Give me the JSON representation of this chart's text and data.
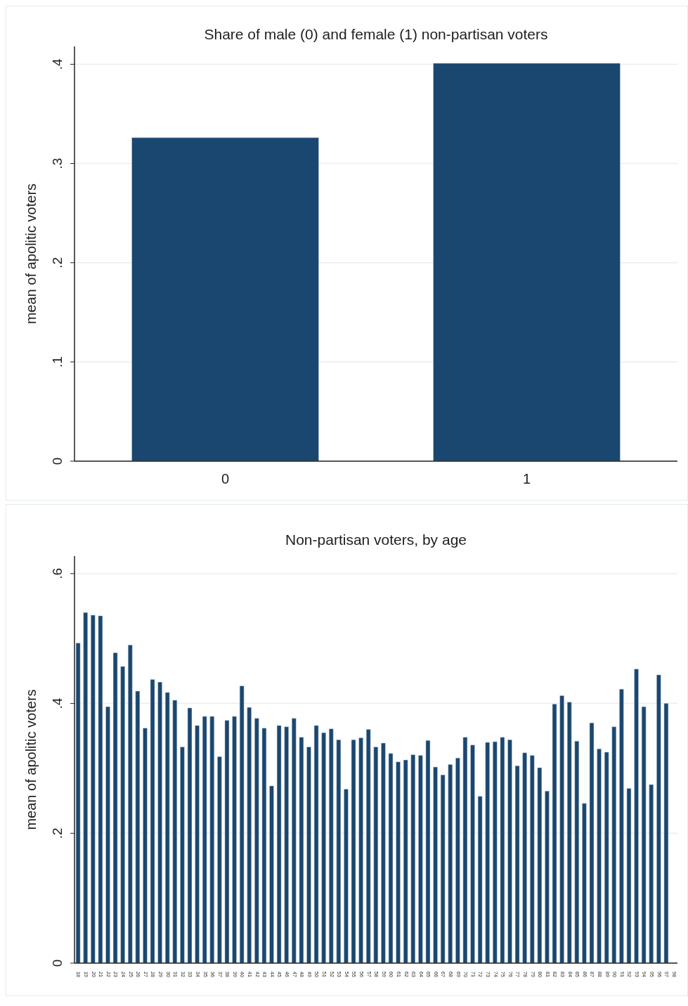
{
  "chart_data": [
    {
      "type": "bar",
      "title": "Share of male (0) and female (1) non-partisan voters",
      "ylabel": "mean of apolitic voters",
      "categories": [
        "0",
        "1"
      ],
      "values": [
        0.326,
        0.401
      ],
      "color": "#1a476f",
      "ylim": [
        0,
        0.418
      ],
      "yticks": [
        {
          "value": 0,
          "label": "0"
        },
        {
          "value": 0.1,
          "label": ".1"
        },
        {
          "value": 0.2,
          "label": ".2"
        },
        {
          "value": 0.3,
          "label": ".3"
        },
        {
          "value": 0.4,
          "label": ".4"
        }
      ],
      "grid": "y"
    },
    {
      "type": "bar",
      "title": "Non-partisan voters, by age",
      "ylabel": "mean of apolitic voters",
      "categories": [
        "18",
        "19",
        "20",
        "21",
        "22",
        "23",
        "24",
        "25",
        "26",
        "27",
        "28",
        "29",
        "30",
        "31",
        "32",
        "33",
        "34",
        "35",
        "36",
        "37",
        "38",
        "39",
        "40",
        "41",
        "42",
        "43",
        "44",
        "45",
        "46",
        "47",
        "48",
        "49",
        "50",
        "51",
        "52",
        "53",
        "54",
        "55",
        "56",
        "57",
        "58",
        "59",
        "60",
        "61",
        "62",
        "63",
        "64",
        "65",
        "66",
        "67",
        "68",
        "69",
        "70",
        "71",
        "72",
        "73",
        "74",
        "75",
        "76",
        "77",
        "78",
        "79",
        "80",
        "81",
        "82",
        "83",
        "84",
        "85",
        "86",
        "87",
        "88",
        "89",
        "90",
        "91",
        "92",
        "93",
        "94",
        "95",
        "96",
        "97",
        "98"
      ],
      "values": [
        0.493,
        0.54,
        0.536,
        0.535,
        0.395,
        0.478,
        0.457,
        0.49,
        0.419,
        0.362,
        0.437,
        0.433,
        0.417,
        0.405,
        0.333,
        0.393,
        0.366,
        0.38,
        0.38,
        0.318,
        0.374,
        0.38,
        0.427,
        0.394,
        0.377,
        0.362,
        0.273,
        0.366,
        0.364,
        0.377,
        0.348,
        0.333,
        0.366,
        0.355,
        0.361,
        0.344,
        0.268,
        0.344,
        0.347,
        0.36,
        0.333,
        0.339,
        0.323,
        0.31,
        0.313,
        0.321,
        0.32,
        0.343,
        0.302,
        0.29,
        0.306,
        0.316,
        0.348,
        0.336,
        0.257,
        0.34,
        0.341,
        0.348,
        0.344,
        0.304,
        0.324,
        0.32,
        0.301,
        0.265,
        0.399,
        0.412,
        0.402,
        0.342,
        0.246,
        0.37,
        0.33,
        0.325,
        0.364,
        0.422,
        0.269,
        0.453,
        0.395,
        0.275,
        0.444,
        0.4,
        null
      ],
      "color": "#1a476f",
      "ylim": [
        0,
        0.627
      ],
      "yticks": [
        {
          "value": 0,
          "label": "0"
        },
        {
          "value": 0.2,
          "label": ".2"
        },
        {
          "value": 0.4,
          "label": ".4"
        },
        {
          "value": 0.6,
          "label": ".6"
        }
      ],
      "grid": "y"
    }
  ]
}
